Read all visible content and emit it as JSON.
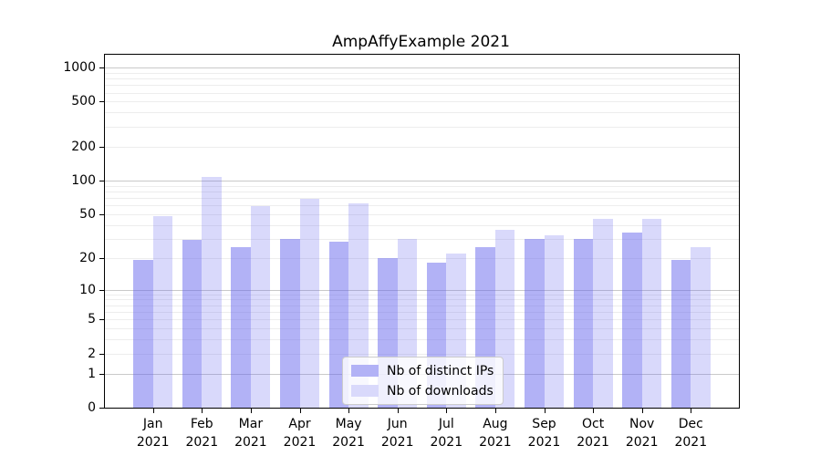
{
  "title": "AmpAffyExample 2021",
  "chart_data": {
    "type": "bar",
    "title": "AmpAffyExample 2021",
    "categories": [
      "Jan",
      "Feb",
      "Mar",
      "Apr",
      "May",
      "Jun",
      "Jul",
      "Aug",
      "Sep",
      "Oct",
      "Nov",
      "Dec"
    ],
    "year": "2021",
    "series": [
      {
        "name": "Nb of distinct IPs",
        "values": [
          19,
          29,
          25,
          30,
          28,
          20,
          18,
          25,
          30,
          30,
          34,
          19
        ],
        "color": "rgba(102,102,238,0.5)",
        "legend_color": "#b2b2f6"
      },
      {
        "name": "Nb of downloads",
        "values": [
          48,
          107,
          59,
          68,
          63,
          30,
          22,
          36,
          32,
          45,
          45,
          25
        ],
        "color": "rgba(102,102,238,0.25)",
        "legend_color": "#d9d9fb"
      }
    ],
    "y_ticks": [
      0,
      1,
      2,
      5,
      10,
      20,
      50,
      100,
      200,
      500,
      1000
    ],
    "y_minor_gridlines": [
      2,
      3,
      4,
      5,
      6,
      7,
      8,
      9,
      20,
      30,
      40,
      50,
      60,
      70,
      80,
      90,
      200,
      300,
      400,
      500,
      600,
      700,
      800,
      900
    ],
    "y_major_gridlines": [
      1,
      10,
      100,
      1000
    ],
    "y_scale": "log10(1+v)",
    "ylim": [
      0,
      1315
    ],
    "xlabel": "",
    "ylabel": "",
    "grid": "horizontal major+minor",
    "legend_position": "lower center"
  },
  "colors": {
    "background": "#ffffff",
    "axis": "#000000",
    "major_grid": "#c9c9c9",
    "minor_grid": "#ededed",
    "bar_base": "#6666ee"
  }
}
